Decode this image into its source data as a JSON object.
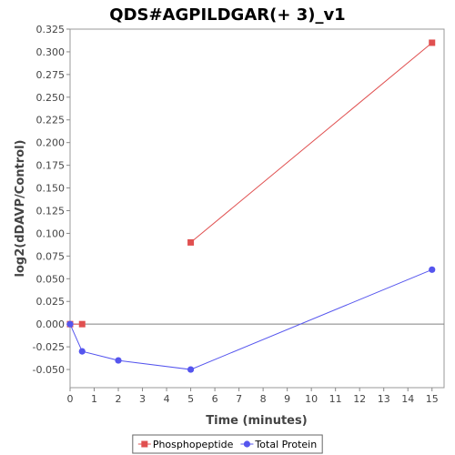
{
  "chart_data": {
    "type": "line",
    "title": "QDS#AGPILDGAR(+ 3)_v1",
    "xlabel": "Time (minutes)",
    "ylabel": "log2(dDAVP/Control)",
    "xlim": [
      0,
      15.5
    ],
    "ylim": [
      -0.07,
      0.325
    ],
    "xticks": [
      0,
      1,
      2,
      3,
      4,
      5,
      6,
      7,
      8,
      9,
      10,
      11,
      12,
      13,
      14,
      15
    ],
    "yticks": [
      -0.05,
      -0.025,
      0.0,
      0.025,
      0.05,
      0.075,
      0.1,
      0.125,
      0.15,
      0.175,
      0.2,
      0.225,
      0.25,
      0.275,
      0.3,
      0.325
    ],
    "ytick_labels": [
      "-0.050",
      "-0.025",
      "0.000",
      "0.025",
      "0.050",
      "0.075",
      "0.100",
      "0.125",
      "0.150",
      "0.175",
      "0.200",
      "0.225",
      "0.250",
      "0.275",
      "0.300",
      "0.325"
    ],
    "zero_line": true,
    "grid": false,
    "legend_position": "bottom",
    "series": [
      {
        "name": "Phosphopeptide",
        "color": "#e05050",
        "marker": "square",
        "segments": [
          [
            [
              0,
              0.0
            ],
            [
              0.5,
              0.0
            ]
          ],
          [
            [
              5,
              0.09
            ],
            [
              15,
              0.31
            ]
          ]
        ]
      },
      {
        "name": "Total Protein",
        "color": "#5555ee",
        "marker": "circle",
        "segments": [
          [
            [
              0,
              0.0
            ],
            [
              0.5,
              -0.03
            ],
            [
              2,
              -0.04
            ],
            [
              5,
              -0.05
            ],
            [
              15,
              0.06
            ]
          ]
        ]
      }
    ]
  }
}
